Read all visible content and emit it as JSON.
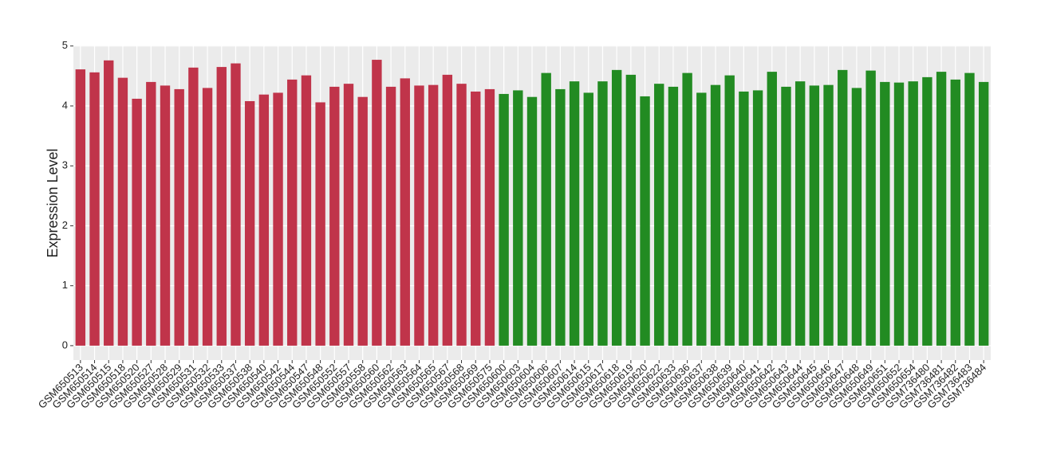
{
  "chart_data": {
    "type": "bar",
    "y_label": "Expression Level",
    "categories": [
      "GSM650513",
      "GSM650514",
      "GSM650515",
      "GSM650518",
      "GSM650520",
      "GSM650527",
      "GSM650528",
      "GSM650529",
      "GSM650531",
      "GSM650532",
      "GSM650533",
      "GSM650537",
      "GSM650538",
      "GSM650540",
      "GSM650542",
      "GSM650544",
      "GSM650547",
      "GSM650548",
      "GSM650552",
      "GSM650557",
      "GSM650558",
      "GSM650560",
      "GSM650562",
      "GSM650563",
      "GSM650564",
      "GSM650565",
      "GSM650567",
      "GSM650568",
      "GSM650569",
      "GSM650575",
      "GSM650600",
      "GSM650603",
      "GSM650604",
      "GSM650606",
      "GSM650607",
      "GSM650614",
      "GSM650615",
      "GSM650617",
      "GSM650618",
      "GSM650619",
      "GSM650620",
      "GSM650622",
      "GSM650633",
      "GSM650636",
      "GSM650637",
      "GSM650638",
      "GSM650639",
      "GSM650640",
      "GSM650641",
      "GSM650642",
      "GSM650643",
      "GSM650644",
      "GSM650645",
      "GSM650646",
      "GSM650647",
      "GSM650648",
      "GSM650649",
      "GSM650651",
      "GSM650652",
      "GSM650654",
      "GSM736480",
      "GSM736481",
      "GSM736482",
      "GSM736483",
      "GSM736484"
    ],
    "values": [
      4.61,
      4.56,
      4.76,
      4.47,
      4.12,
      4.4,
      4.34,
      4.28,
      4.64,
      4.3,
      4.65,
      4.71,
      4.08,
      4.19,
      4.22,
      4.44,
      4.51,
      4.06,
      4.32,
      4.37,
      4.15,
      4.77,
      4.32,
      4.46,
      4.34,
      4.35,
      4.52,
      4.37,
      4.24,
      4.28,
      4.2,
      4.26,
      4.15,
      4.55,
      4.28,
      4.41,
      4.22,
      4.41,
      4.6,
      4.52,
      4.16,
      4.37,
      4.32,
      4.55,
      4.22,
      4.35,
      4.51,
      4.24,
      4.26,
      4.57,
      4.32,
      4.41,
      4.34,
      4.35,
      4.6,
      4.3,
      4.59,
      4.4,
      4.39,
      4.41,
      4.48,
      4.57,
      4.44,
      4.55,
      4.4
    ],
    "colors": [
      "#c0344a",
      "#c0344a",
      "#c0344a",
      "#c0344a",
      "#c0344a",
      "#c0344a",
      "#c0344a",
      "#c0344a",
      "#c0344a",
      "#c0344a",
      "#c0344a",
      "#c0344a",
      "#c0344a",
      "#c0344a",
      "#c0344a",
      "#c0344a",
      "#c0344a",
      "#c0344a",
      "#c0344a",
      "#c0344a",
      "#c0344a",
      "#c0344a",
      "#c0344a",
      "#c0344a",
      "#c0344a",
      "#c0344a",
      "#c0344a",
      "#c0344a",
      "#c0344a",
      "#c0344a",
      "#228b22",
      "#228b22",
      "#228b22",
      "#228b22",
      "#228b22",
      "#228b22",
      "#228b22",
      "#228b22",
      "#228b22",
      "#228b22",
      "#228b22",
      "#228b22",
      "#228b22",
      "#228b22",
      "#228b22",
      "#228b22",
      "#228b22",
      "#228b22",
      "#228b22",
      "#228b22",
      "#228b22",
      "#228b22",
      "#228b22",
      "#228b22",
      "#228b22",
      "#228b22",
      "#228b22",
      "#228b22",
      "#228b22",
      "#228b22",
      "#228b22",
      "#228b22",
      "#228b22",
      "#228b22",
      "#228b22"
    ],
    "ylim": [
      -0.24,
      5.01
    ],
    "yticks": [
      0,
      1,
      2,
      3,
      4,
      5
    ],
    "grid": true
  }
}
